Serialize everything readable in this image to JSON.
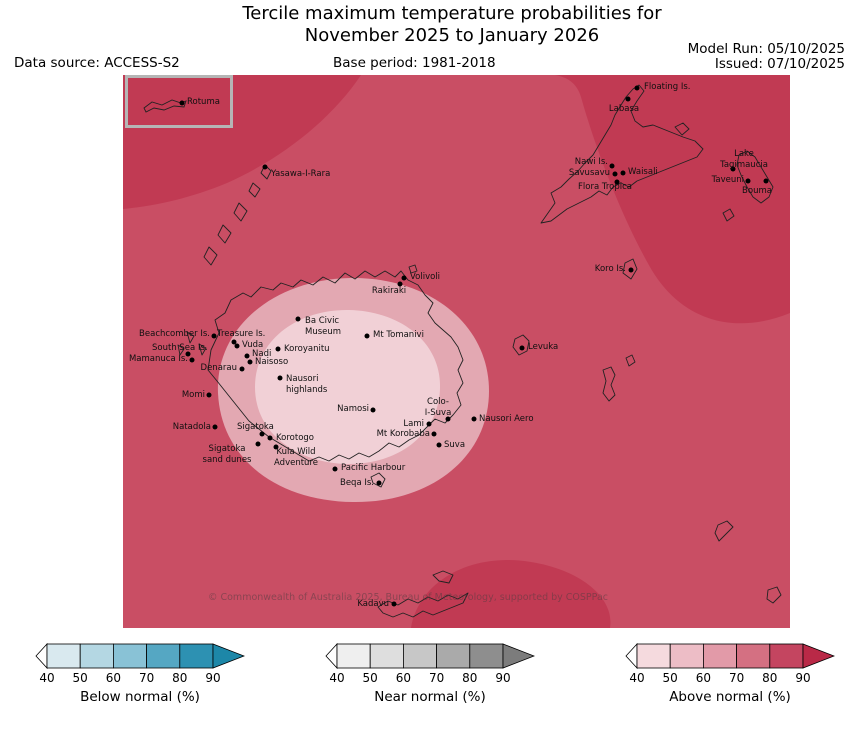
{
  "title": {
    "line1": "Tercile maximum temperature probabilities for",
    "line2": "November 2025 to January 2026"
  },
  "header": {
    "model_run": "Model Run: 05/10/2025",
    "issued": "Issued: 07/10/2025",
    "data_source": "Data source: ACCESS-S2",
    "base_period": "Base period: 1981-2018"
  },
  "map": {
    "colors": {
      "base": "#c94e64",
      "dark": "#c13a53",
      "light": "#e3a8b2",
      "lightest": "#f1d0d6",
      "coast": "#222222"
    },
    "inset": {
      "label": "Rotuma"
    },
    "copyright": "© Commonwealth of Australia 2025, Bureau of Meteorology, supported by COSPPac",
    "locations": [
      {
        "text": "Rotuma",
        "dot": [
          59,
          28
        ],
        "label": [
          64,
          28
        ],
        "align": "left"
      },
      {
        "text": "Floating Is.",
        "dot": [
          514,
          13
        ],
        "label": [
          521,
          13
        ],
        "align": "left"
      },
      {
        "text": "Labasa",
        "dot": [
          505,
          24
        ],
        "label": [
          501,
          35
        ],
        "align": "center"
      },
      {
        "text": "Nawi Is.",
        "dot": [
          489,
          91
        ],
        "label": [
          485,
          88
        ],
        "align": "right"
      },
      {
        "text": "Savusavu",
        "dot": [
          492,
          99
        ],
        "label": [
          487,
          99
        ],
        "align": "right"
      },
      {
        "text": "Waisali",
        "dot": [
          500,
          98
        ],
        "label": [
          505,
          98
        ],
        "align": "left"
      },
      {
        "text": "Flora Tropica",
        "dot": [
          494,
          107
        ],
        "label": [
          482,
          113
        ],
        "align": "center"
      },
      {
        "text": "Lake\nTagimaucia",
        "dot": [
          610,
          94
        ],
        "label": [
          621,
          80
        ],
        "align": "center"
      },
      {
        "text": "Taveuni",
        "dot": [
          625,
          106
        ],
        "label": [
          621,
          106
        ],
        "align": "right"
      },
      {
        "text": "Bouma",
        "dot": [
          643,
          106
        ],
        "label": [
          634,
          117
        ],
        "align": "center"
      },
      {
        "text": "Yasawa-I-Rara",
        "dot": [
          142,
          92
        ],
        "label": [
          148,
          100
        ],
        "align": "left"
      },
      {
        "text": "Koro Is.",
        "dot": [
          508,
          195
        ],
        "label": [
          503,
          195
        ],
        "align": "right"
      },
      {
        "text": "Volivoli",
        "dot": [
          281,
          203
        ],
        "label": [
          287,
          203
        ],
        "align": "left"
      },
      {
        "text": "Rakiraki",
        "dot": [
          277,
          209
        ],
        "label": [
          266,
          217
        ],
        "align": "center"
      },
      {
        "text": "Ba Civic\nMuseum",
        "dot": [
          175,
          244
        ],
        "label": [
          182,
          247
        ],
        "align": "left"
      },
      {
        "text": "Mt Tomanivi",
        "dot": [
          244,
          261
        ],
        "label": [
          250,
          261
        ],
        "align": "left"
      },
      {
        "text": "Beachcomber Is.",
        "dot": [
          91,
          261
        ],
        "label": [
          87,
          260
        ],
        "align": "right"
      },
      {
        "text": "Treasure Is.",
        "dot": [
          111,
          267
        ],
        "label": [
          94,
          260
        ],
        "align": "left"
      },
      {
        "text": "Vuda",
        "dot": [
          114,
          271
        ],
        "label": [
          119,
          271
        ],
        "align": "left"
      },
      {
        "text": "Koroyanitu",
        "dot": [
          155,
          274
        ],
        "label": [
          161,
          275
        ],
        "align": "left"
      },
      {
        "text": "South Sea Is.",
        "dot": [
          65,
          279
        ],
        "label": [
          29,
          274
        ],
        "align": "left"
      },
      {
        "text": "Nadi",
        "dot": [
          124,
          281
        ],
        "label": [
          129,
          280
        ],
        "align": "left"
      },
      {
        "text": "Naisoso",
        "dot": [
          127,
          287
        ],
        "label": [
          132,
          288
        ],
        "align": "left"
      },
      {
        "text": "Mamanuca Is.",
        "dot": [
          69,
          285
        ],
        "label": [
          65,
          285
        ],
        "align": "right"
      },
      {
        "text": "Denarau",
        "dot": [
          119,
          294
        ],
        "label": [
          114,
          294
        ],
        "align": "right"
      },
      {
        "text": "Nausori\nhighlands",
        "dot": [
          157,
          303
        ],
        "label": [
          163,
          305
        ],
        "align": "left"
      },
      {
        "text": "Levuka",
        "dot": [
          399,
          273
        ],
        "label": [
          405,
          273
        ],
        "align": "left"
      },
      {
        "text": "Momi",
        "dot": [
          86,
          320
        ],
        "label": [
          82,
          321
        ],
        "align": "right"
      },
      {
        "text": "Namosi",
        "dot": [
          250,
          335
        ],
        "label": [
          246,
          335
        ],
        "align": "right"
      },
      {
        "text": "Colo-\nI-Suva",
        "dot": [
          325,
          344
        ],
        "label": [
          315,
          328
        ],
        "align": "center"
      },
      {
        "text": "Nausori Aero",
        "dot": [
          351,
          344
        ],
        "label": [
          356,
          345
        ],
        "align": "left"
      },
      {
        "text": "Lami",
        "dot": [
          306,
          349
        ],
        "label": [
          301,
          350
        ],
        "align": "right"
      },
      {
        "text": "Mt Korobaba",
        "dot": [
          311,
          359
        ],
        "label": [
          307,
          360
        ],
        "align": "right"
      },
      {
        "text": "Suva",
        "dot": [
          316,
          370
        ],
        "label": [
          321,
          371
        ],
        "align": "left"
      },
      {
        "text": "Natadola",
        "dot": [
          92,
          352
        ],
        "label": [
          88,
          353
        ],
        "align": "right"
      },
      {
        "text": "Sigatoka",
        "dot": [
          139,
          359
        ],
        "label": [
          114,
          353
        ],
        "align": "left"
      },
      {
        "text": "Korotogo",
        "dot": [
          147,
          363
        ],
        "label": [
          153,
          364
        ],
        "align": "left"
      },
      {
        "text": "Sigatoka\nsand dunes",
        "dot": [
          135,
          369
        ],
        "label": [
          104,
          375
        ],
        "align": "center"
      },
      {
        "text": "Kula Wild\nAdventure",
        "dot": [
          153,
          372
        ],
        "label": [
          173,
          378
        ],
        "align": "center"
      },
      {
        "text": "Pacific Harbour",
        "dot": [
          212,
          394
        ],
        "label": [
          218,
          394
        ],
        "align": "left"
      },
      {
        "text": "Beqa Is.",
        "dot": [
          256,
          408
        ],
        "label": [
          251,
          409
        ],
        "align": "right"
      },
      {
        "text": "Kadavu",
        "dot": [
          271,
          529
        ],
        "label": [
          266,
          530
        ],
        "align": "right"
      }
    ]
  },
  "legends": [
    {
      "label": "Below normal (%)",
      "ticks": [
        "40",
        "50",
        "60",
        "70",
        "80",
        "90"
      ],
      "segments": [
        "#ffffff",
        "#d9e9ef",
        "#b4d7e3",
        "#89c2d6",
        "#55a7c3",
        "#2d91b2",
        "#1d87a8"
      ]
    },
    {
      "label": "Near normal (%)",
      "ticks": [
        "40",
        "50",
        "60",
        "70",
        "80",
        "90"
      ],
      "segments": [
        "#ffffff",
        "#efefef",
        "#dedede",
        "#c7c7c7",
        "#aaaaaa",
        "#8e8e8e",
        "#7c7c7c"
      ]
    },
    {
      "label": "Above normal (%)",
      "ticks": [
        "40",
        "50",
        "60",
        "70",
        "80",
        "90"
      ],
      "segments": [
        "#ffffff",
        "#f5dade",
        "#edbdc6",
        "#e29aa8",
        "#d47082",
        "#c44560",
        "#b92947"
      ]
    }
  ]
}
